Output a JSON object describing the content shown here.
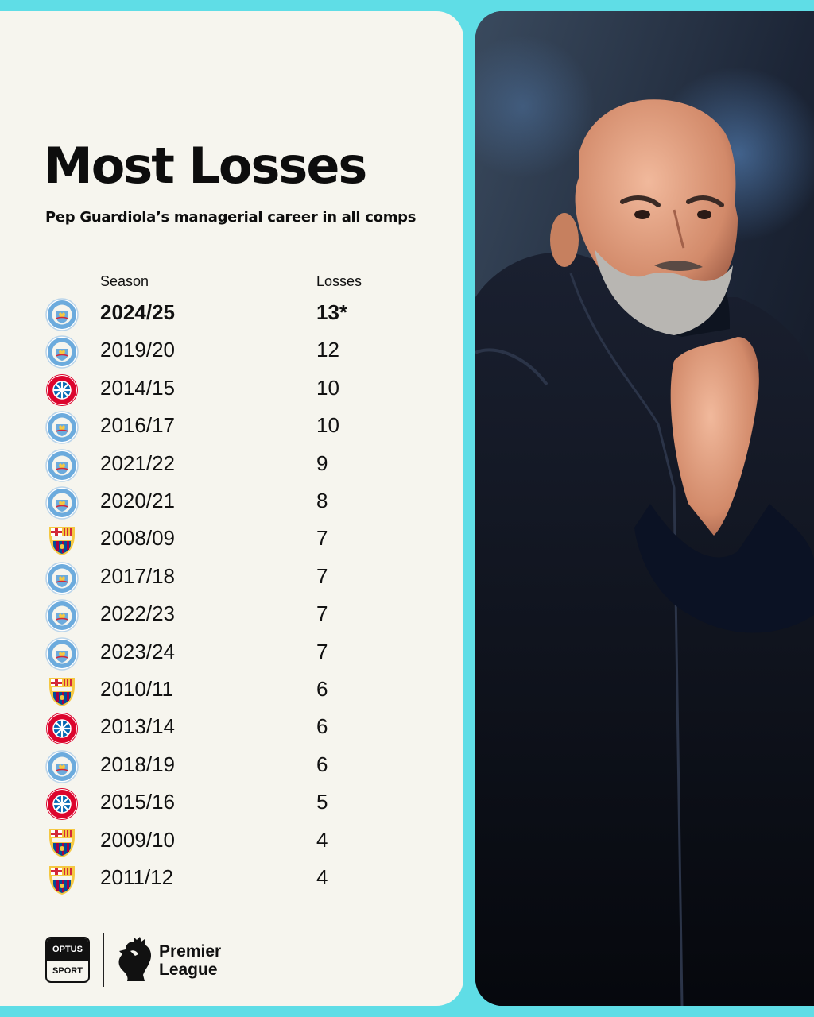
{
  "title": "Most Losses",
  "subtitle": "Pep Guardiola’s managerial career in all comps",
  "table": {
    "headers": {
      "season": "Season",
      "losses": "Losses"
    },
    "rows": [
      {
        "club": "manchester-city",
        "season": "2024/25",
        "losses": "13*",
        "highlight": true
      },
      {
        "club": "manchester-city",
        "season": "2019/20",
        "losses": "12"
      },
      {
        "club": "bayern-munchen",
        "season": "2014/15",
        "losses": "10"
      },
      {
        "club": "manchester-city",
        "season": "2016/17",
        "losses": "10"
      },
      {
        "club": "manchester-city",
        "season": "2021/22",
        "losses": "9"
      },
      {
        "club": "manchester-city",
        "season": "2020/21",
        "losses": "8"
      },
      {
        "club": "barcelona",
        "season": "2008/09",
        "losses": "7"
      },
      {
        "club": "manchester-city",
        "season": "2017/18",
        "losses": "7"
      },
      {
        "club": "manchester-city",
        "season": "2022/23",
        "losses": "7"
      },
      {
        "club": "manchester-city",
        "season": "2023/24",
        "losses": "7"
      },
      {
        "club": "barcelona",
        "season": "2010/11",
        "losses": "6"
      },
      {
        "club": "bayern-munchen",
        "season": "2013/14",
        "losses": "6"
      },
      {
        "club": "manchester-city",
        "season": "2018/19",
        "losses": "6"
      },
      {
        "club": "bayern-munchen",
        "season": "2015/16",
        "losses": "5"
      },
      {
        "club": "barcelona",
        "season": "2009/10",
        "losses": "4"
      },
      {
        "club": "barcelona",
        "season": "2011/12",
        "losses": "4"
      }
    ]
  },
  "footer": {
    "optus_top": "OPTUS",
    "optus_bottom": "SPORT",
    "pl_line1": "Premier",
    "pl_line2": "League"
  },
  "colors": {
    "background": "#5fdde6",
    "card": "#f6f5ee",
    "text": "#0d0d0d",
    "city_blue": "#6cabdd",
    "bayern_red": "#dc052d",
    "barca_blue": "#004d98",
    "barca_red": "#a50044"
  }
}
